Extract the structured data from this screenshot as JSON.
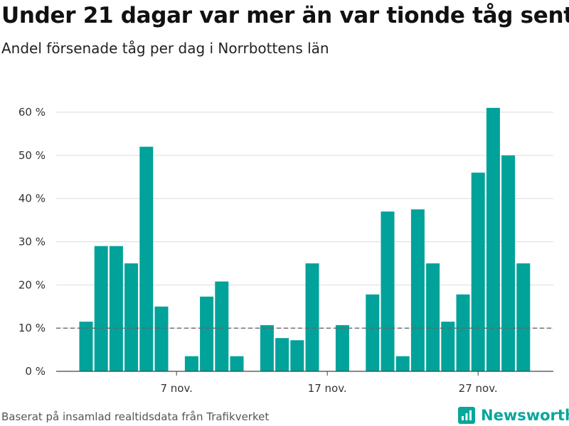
{
  "header": {
    "title": "Under 21 dagar var mer än var tionde tåg sent",
    "subtitle": "Andel försenade tåg per dag i Norrbottens län"
  },
  "footer": {
    "source": "Baserat på insamlad realtidsdata från Trafikverket",
    "brand": "Newsworthy"
  },
  "colors": {
    "bar": "#00a29a",
    "brand": "#08a79b",
    "grid": "#dddddd",
    "reference_line": "#666666"
  },
  "chart_data": {
    "type": "bar",
    "title": "Under 21 dagar var mer än var tionde tåg sent",
    "subtitle": "Andel försenade tåg per dag i Norrbottens län",
    "xlabel": "",
    "ylabel": "",
    "ylim": [
      0,
      60
    ],
    "y_ticks": [
      0,
      10,
      20,
      30,
      40,
      50,
      60
    ],
    "y_tick_labels": [
      "0 %",
      "10 %",
      "20 %",
      "30 %",
      "40 %",
      "50 %",
      "60 %"
    ],
    "x_tick_labels": [
      {
        "label": "7 nov.",
        "day": 7
      },
      {
        "label": "17 nov.",
        "day": 17
      },
      {
        "label": "27 nov.",
        "day": 27
      }
    ],
    "reference_line": {
      "value": 10,
      "style": "dashed"
    },
    "grid": true,
    "days": [
      1,
      2,
      3,
      4,
      5,
      6,
      7,
      8,
      9,
      10,
      11,
      12,
      13,
      14,
      15,
      16,
      17,
      18,
      19,
      20,
      21,
      22,
      23,
      24,
      25,
      26,
      27,
      28,
      29,
      30
    ],
    "values": [
      11.5,
      29,
      29,
      25,
      52,
      15,
      null,
      3.5,
      17.3,
      20.8,
      3.5,
      null,
      10.7,
      7.7,
      7.2,
      25,
      null,
      10.7,
      null,
      17.8,
      37,
      3.5,
      37.5,
      25,
      11.5,
      17.8,
      46,
      61,
      50,
      25
    ]
  }
}
